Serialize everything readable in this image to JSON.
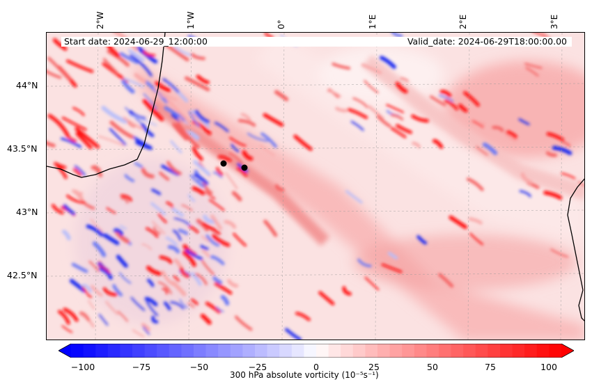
{
  "header": {
    "start_date": "Start date: 2024-06-29_12:00:00",
    "valid_date": "Valid_date: 2024-06-29T18:00:00.00"
  },
  "axes": {
    "lon_ticks": [
      "2°W",
      "1°W",
      "0°",
      "1°E",
      "2°E",
      "3°E"
    ],
    "lat_ticks": [
      "44°N",
      "43.5°N",
      "43°N",
      "42.5°N"
    ]
  },
  "colorbar": {
    "label": "300 hPa absolute vorticity (10⁻⁵s⁻¹)",
    "ticks": [
      "−100",
      "−75",
      "−50",
      "−25",
      "0",
      "25",
      "50",
      "75",
      "100"
    ],
    "min": -100,
    "max": 100,
    "colors": {
      "negative": "#0000ff",
      "zero": "#ffffff",
      "positive": "#ff0000"
    }
  },
  "map_data": {
    "field": "300 hPa absolute vorticity",
    "units": "10^-5 s^-1",
    "lon_range": [
      -2.6,
      3.35
    ],
    "lat_range": [
      42.0,
      44.4
    ],
    "markers": [
      {
        "lon": -0.62,
        "lat": 43.38
      },
      {
        "lon": -0.38,
        "lat": 43.35
      }
    ]
  }
}
